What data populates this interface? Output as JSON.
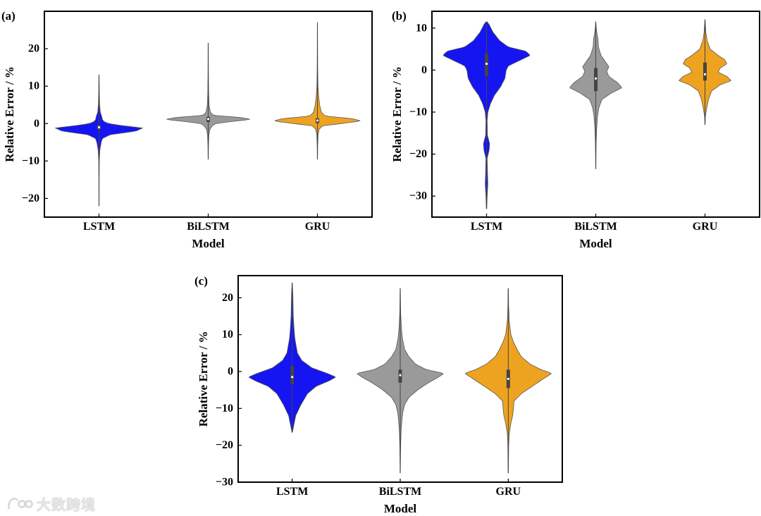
{
  "watermark": {
    "text": "大数跨境"
  },
  "chart_data": [
    {
      "type": "violin",
      "panel_label": "(a)",
      "xlabel": "Model",
      "ylabel": "Relative Error / %",
      "ylim": [
        -25,
        30
      ],
      "yticks": [
        -20,
        -10,
        0,
        10,
        20
      ],
      "categories": [
        "LSTM",
        "BiLSTM",
        "GRU"
      ],
      "colors": [
        "#1515f2",
        "#9a9a9a",
        "#eea320"
      ],
      "series": [
        {
          "name": "LSTM",
          "min": -22,
          "max": 13,
          "q1": -1.6,
          "median": -1.0,
          "q3": -0.4,
          "profile": [
            [
              -22,
              0.003
            ],
            [
              -15,
              0.004
            ],
            [
              -10,
              0.007
            ],
            [
              -7,
              0.02
            ],
            [
              -5,
              0.05
            ],
            [
              -4,
              0.08
            ],
            [
              -3,
              0.25
            ],
            [
              -2,
              0.85
            ],
            [
              -1.2,
              1.0
            ],
            [
              -0.5,
              0.5
            ],
            [
              0,
              0.22
            ],
            [
              0.5,
              0.12
            ],
            [
              1,
              0.08
            ],
            [
              2,
              0.06
            ],
            [
              3,
              0.03
            ],
            [
              5,
              0.015
            ],
            [
              8,
              0.008
            ],
            [
              13,
              0.003
            ]
          ]
        },
        {
          "name": "BiLSTM",
          "min": -9.5,
          "max": 21.5,
          "q1": 0.4,
          "median": 1.2,
          "q3": 1.8,
          "profile": [
            [
              -9.5,
              0.003
            ],
            [
              -6,
              0.006
            ],
            [
              -3,
              0.015
            ],
            [
              -1.5,
              0.04
            ],
            [
              -0.5,
              0.1
            ],
            [
              0,
              0.18
            ],
            [
              0.5,
              0.5
            ],
            [
              1.1,
              0.98
            ],
            [
              1.6,
              0.75
            ],
            [
              2.2,
              0.12
            ],
            [
              3,
              0.05
            ],
            [
              5,
              0.02
            ],
            [
              8,
              0.01
            ],
            [
              14,
              0.005
            ],
            [
              21.5,
              0.003
            ]
          ]
        },
        {
          "name": "GRU",
          "min": -9.5,
          "max": 27,
          "q1": 0.1,
          "median": 0.8,
          "q3": 1.4,
          "profile": [
            [
              -9.5,
              0.003
            ],
            [
              -6,
              0.006
            ],
            [
              -3,
              0.015
            ],
            [
              -1.5,
              0.04
            ],
            [
              -0.6,
              0.12
            ],
            [
              0,
              0.55
            ],
            [
              0.7,
              1.0
            ],
            [
              1.3,
              0.8
            ],
            [
              2,
              0.18
            ],
            [
              3,
              0.09
            ],
            [
              5,
              0.05
            ],
            [
              7,
              0.03
            ],
            [
              10,
              0.012
            ],
            [
              15,
              0.006
            ],
            [
              20,
              0.004
            ],
            [
              27,
              0.002
            ]
          ]
        }
      ]
    },
    {
      "type": "violin",
      "panel_label": "(b)",
      "xlabel": "Model",
      "ylabel": "Relative Error / %",
      "ylim": [
        -35,
        14
      ],
      "yticks": [
        -30,
        -20,
        -10,
        0,
        10
      ],
      "categories": [
        "LSTM",
        "BiLSTM",
        "GRU"
      ],
      "colors": [
        "#1515f2",
        "#9a9a9a",
        "#eea320"
      ],
      "series": [
        {
          "name": "LSTM",
          "min": -33,
          "max": 11.5,
          "q1": -1.5,
          "median": 1.5,
          "q3": 4.0,
          "profile": [
            [
              -33,
              0.005
            ],
            [
              -30,
              0.015
            ],
            [
              -27,
              0.03
            ],
            [
              -24,
              0.02
            ],
            [
              -21,
              0.015
            ],
            [
              -19,
              0.06
            ],
            [
              -17.5,
              0.07
            ],
            [
              -15.5,
              0.02
            ],
            [
              -12,
              0.015
            ],
            [
              -10,
              0.03
            ],
            [
              -8,
              0.09
            ],
            [
              -6,
              0.18
            ],
            [
              -4,
              0.32
            ],
            [
              -2,
              0.42
            ],
            [
              0,
              0.45
            ],
            [
              1,
              0.5
            ],
            [
              2.5,
              0.8
            ],
            [
              3.5,
              1.0
            ],
            [
              4.5,
              0.9
            ],
            [
              5.5,
              0.5
            ],
            [
              7,
              0.3
            ],
            [
              9,
              0.15
            ],
            [
              11,
              0.05
            ],
            [
              11.5,
              0.01
            ]
          ]
        },
        {
          "name": "BiLSTM",
          "min": -23.5,
          "max": 11.5,
          "q1": -5.0,
          "median": -2.0,
          "q3": 0.5,
          "profile": [
            [
              -23.5,
              0.003
            ],
            [
              -20,
              0.006
            ],
            [
              -17,
              0.01
            ],
            [
              -14,
              0.02
            ],
            [
              -11,
              0.04
            ],
            [
              -9,
              0.07
            ],
            [
              -7,
              0.14
            ],
            [
              -5.5,
              0.35
            ],
            [
              -4.2,
              0.6
            ],
            [
              -3,
              0.5
            ],
            [
              -1.5,
              0.3
            ],
            [
              -0.3,
              0.25
            ],
            [
              0.8,
              0.3
            ],
            [
              2,
              0.22
            ],
            [
              3.5,
              0.12
            ],
            [
              5.5,
              0.06
            ],
            [
              7.5,
              0.05
            ],
            [
              8.5,
              0.03
            ],
            [
              10,
              0.012
            ],
            [
              11.5,
              0.003
            ]
          ]
        },
        {
          "name": "GRU",
          "min": -13,
          "max": 12,
          "q1": -2.5,
          "median": -1.0,
          "q3": 1.8,
          "profile": [
            [
              -13,
              0.003
            ],
            [
              -11,
              0.01
            ],
            [
              -9,
              0.04
            ],
            [
              -7,
              0.08
            ],
            [
              -5,
              0.15
            ],
            [
              -3.5,
              0.35
            ],
            [
              -2.5,
              0.6
            ],
            [
              -1.5,
              0.5
            ],
            [
              -0.5,
              0.3
            ],
            [
              0.5,
              0.35
            ],
            [
              1.5,
              0.5
            ],
            [
              2.5,
              0.45
            ],
            [
              3.5,
              0.3
            ],
            [
              5,
              0.12
            ],
            [
              7,
              0.05
            ],
            [
              9,
              0.02
            ],
            [
              12,
              0.003
            ]
          ]
        }
      ]
    },
    {
      "type": "violin",
      "panel_label": "(c)",
      "xlabel": "Model",
      "ylabel": "Relative Error / %",
      "ylim": [
        -30,
        26
      ],
      "yticks": [
        -30,
        -20,
        -10,
        0,
        10,
        20
      ],
      "categories": [
        "LSTM",
        "BiLSTM",
        "GRU"
      ],
      "colors": [
        "#1515f2",
        "#9a9a9a",
        "#eea320"
      ],
      "series": [
        {
          "name": "LSTM",
          "min": -16.5,
          "max": 24,
          "q1": -3.5,
          "median": -1.5,
          "q3": 1.5,
          "profile": [
            [
              -16.5,
              0.005
            ],
            [
              -15,
              0.03
            ],
            [
              -12,
              0.08
            ],
            [
              -9,
              0.2
            ],
            [
              -6,
              0.35
            ],
            [
              -4,
              0.55
            ],
            [
              -2.5,
              0.85
            ],
            [
              -1.5,
              1.0
            ],
            [
              -0.5,
              0.8
            ],
            [
              1,
              0.45
            ],
            [
              3,
              0.22
            ],
            [
              5,
              0.12
            ],
            [
              7,
              0.09
            ],
            [
              9,
              0.06
            ],
            [
              12,
              0.04
            ],
            [
              15,
              0.025
            ],
            [
              18,
              0.02
            ],
            [
              21,
              0.015
            ],
            [
              24,
              0.003
            ]
          ]
        },
        {
          "name": "BiLSTM",
          "min": -27.5,
          "max": 22.5,
          "q1": -3.0,
          "median": -1.0,
          "q3": 0.5,
          "profile": [
            [
              -27.5,
              0.003
            ],
            [
              -24,
              0.006
            ],
            [
              -20,
              0.01
            ],
            [
              -16,
              0.02
            ],
            [
              -13,
              0.04
            ],
            [
              -11,
              0.06
            ],
            [
              -9,
              0.1
            ],
            [
              -7,
              0.2
            ],
            [
              -5,
              0.4
            ],
            [
              -3,
              0.65
            ],
            [
              -1.5,
              0.88
            ],
            [
              -0.5,
              1.0
            ],
            [
              0.5,
              0.6
            ],
            [
              2,
              0.35
            ],
            [
              4,
              0.2
            ],
            [
              6,
              0.1
            ],
            [
              9,
              0.05
            ],
            [
              12,
              0.025
            ],
            [
              16,
              0.01
            ],
            [
              22.5,
              0.003
            ]
          ]
        },
        {
          "name": "GRU",
          "min": -27.5,
          "max": 22.5,
          "q1": -4.5,
          "median": -2.0,
          "q3": 0.5,
          "profile": [
            [
              -27.5,
              0.003
            ],
            [
              -24,
              0.006
            ],
            [
              -20,
              0.01
            ],
            [
              -17,
              0.02
            ],
            [
              -14,
              0.06
            ],
            [
              -12,
              0.1
            ],
            [
              -10,
              0.12
            ],
            [
              -8,
              0.13
            ],
            [
              -6,
              0.3
            ],
            [
              -4,
              0.55
            ],
            [
              -2,
              0.8
            ],
            [
              -0.5,
              1.0
            ],
            [
              0.5,
              0.75
            ],
            [
              2,
              0.5
            ],
            [
              4,
              0.3
            ],
            [
              6,
              0.2
            ],
            [
              8,
              0.12
            ],
            [
              10,
              0.06
            ],
            [
              14,
              0.02
            ],
            [
              18,
              0.008
            ],
            [
              22.5,
              0.003
            ]
          ]
        }
      ]
    }
  ]
}
